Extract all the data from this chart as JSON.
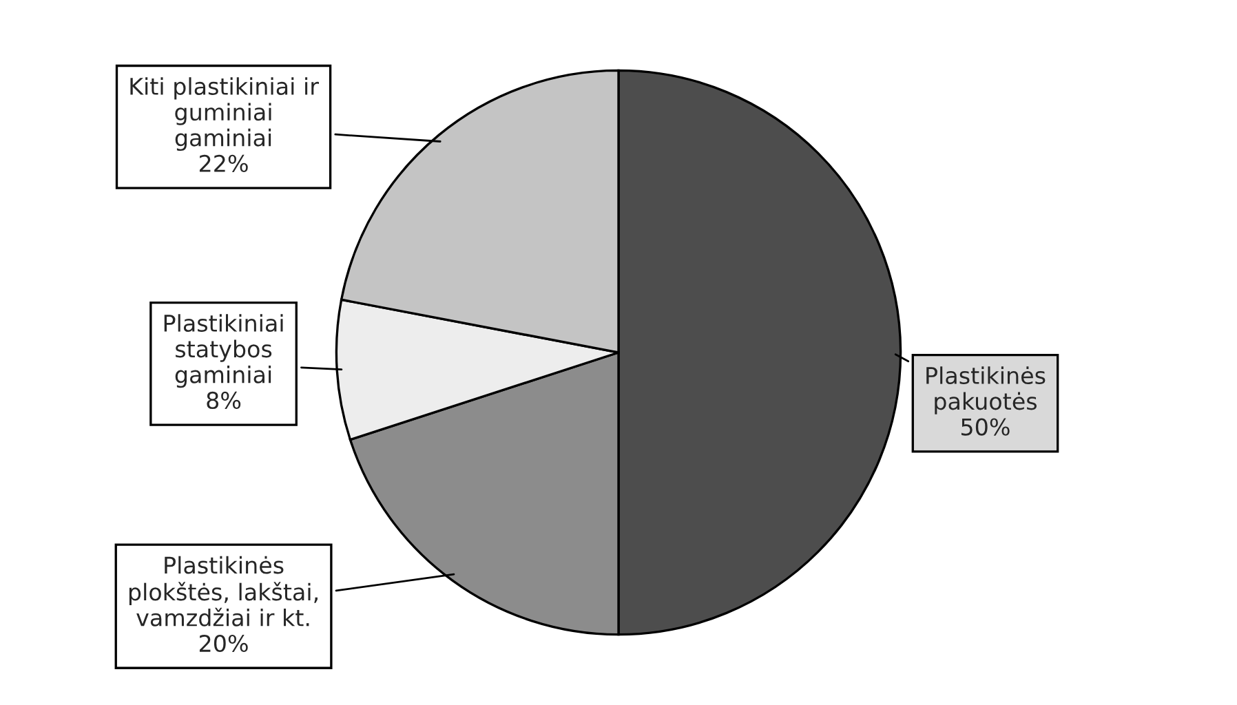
{
  "chart_data": {
    "type": "pie",
    "categories": [
      "Plastikinės\npakuotės",
      "Plastikinės\nplokštės, lakštai,\nvamzdžiai ir kt.",
      "Plastikiniai\nstatybos\ngaminiai",
      "Kiti plastikiniai ir\nguminiai\ngaminiai"
    ],
    "values": [
      50,
      20,
      8,
      22
    ],
    "colors": [
      "#4d4d4d",
      "#8c8c8c",
      "#ededed",
      "#c4c4c4"
    ],
    "value_labels": [
      "50%",
      "20%",
      "8%",
      "22%"
    ]
  }
}
